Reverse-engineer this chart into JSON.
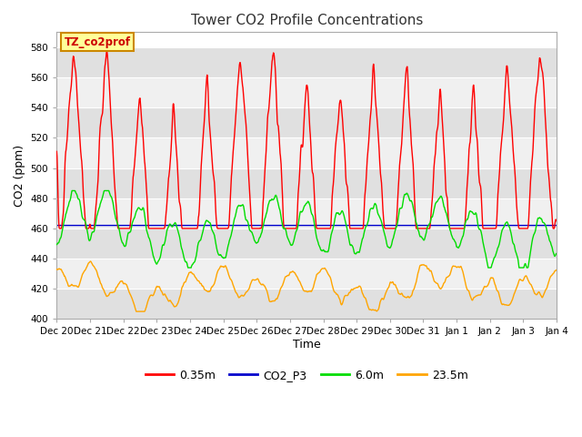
{
  "title": "Tower CO2 Profile Concentrations",
  "xlabel": "Time",
  "ylabel": "CO2 (ppm)",
  "ylim": [
    400,
    590
  ],
  "yticks": [
    400,
    420,
    440,
    460,
    480,
    500,
    520,
    540,
    560,
    580
  ],
  "series": {
    "0.35m": {
      "color": "#ff0000",
      "lw": 1.0
    },
    "CO2_P3": {
      "color": "#0000cc",
      "lw": 1.0
    },
    "6.0m": {
      "color": "#00dd00",
      "lw": 1.0
    },
    "23.5m": {
      "color": "#ffa500",
      "lw": 1.0
    }
  },
  "annotation_text": "TZ_co2prof",
  "annotation_bg": "#ffff99",
  "annotation_border": "#cc8800",
  "bg_color": "#ffffff",
  "plot_bg_stripe_dark": "#e0e0e0",
  "plot_bg_stripe_light": "#f0f0f0",
  "n_points": 1440,
  "xtick_labels": [
    "Dec 20",
    "Dec 21",
    "Dec 22",
    "Dec 23",
    "Dec 24",
    "Dec 25",
    "Dec 26",
    "Dec 27",
    "Dec 28",
    "Dec 29",
    "Dec 30",
    "Dec 31",
    "Jan 1",
    "Jan 2",
    "Jan 3",
    "Jan 4"
  ],
  "red_seed": 10,
  "green_seed": 20,
  "orange_seed": 30
}
